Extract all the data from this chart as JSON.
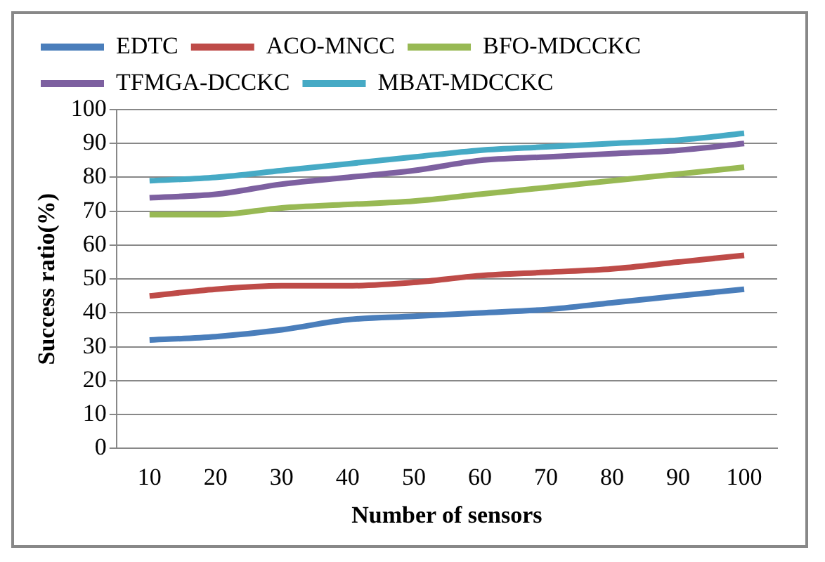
{
  "chart_data": {
    "type": "line",
    "xlabel": "Number of sensors",
    "ylabel": "Success ratio(%)",
    "categories": [
      "10",
      "20",
      "30",
      "40",
      "50",
      "60",
      "70",
      "80",
      "90",
      "100"
    ],
    "series": [
      {
        "name": "EDTC",
        "color": "#4a7ebb",
        "values": [
          32,
          33,
          35,
          38,
          39,
          40,
          41,
          43,
          45,
          47
        ]
      },
      {
        "name": "ACO-MNCC",
        "color": "#be4b48",
        "values": [
          45,
          47,
          48,
          48,
          49,
          51,
          52,
          53,
          55,
          57
        ]
      },
      {
        "name": "BFO-MDCCKC",
        "color": "#98b954",
        "values": [
          69,
          69,
          71,
          72,
          73,
          75,
          77,
          79,
          81,
          83
        ]
      },
      {
        "name": "TFMGA-DCCKC",
        "color": "#7d60a0",
        "values": [
          74,
          75,
          78,
          80,
          82,
          85,
          86,
          87,
          88,
          90
        ]
      },
      {
        "name": "MBAT-MDCCKC",
        "color": "#46aac5",
        "values": [
          79,
          80,
          82,
          84,
          86,
          88,
          89,
          90,
          91,
          93
        ]
      }
    ],
    "ylim": [
      0,
      100
    ],
    "yticks": [
      0,
      10,
      20,
      30,
      40,
      50,
      60,
      70,
      80,
      90,
      100
    ],
    "grid": "y",
    "legend": "top",
    "marker": "none"
  }
}
